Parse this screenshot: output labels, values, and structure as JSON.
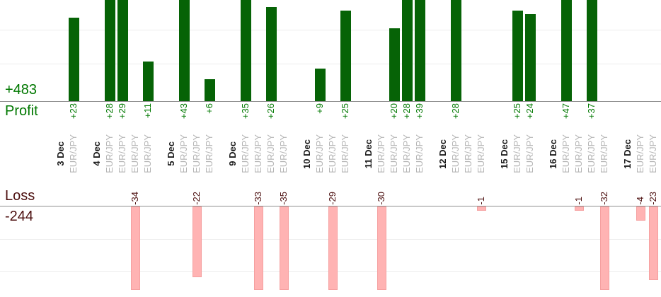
{
  "labels": {
    "profit_total": "+483",
    "profit_caption": "Profit",
    "loss_caption": "Loss",
    "loss_total": "-244"
  },
  "chart_data": {
    "type": "bar",
    "orientation": "vertical-diverging",
    "grid": true,
    "legend": false,
    "profit_axis_caption": "Profit",
    "loss_axis_caption": "Loss",
    "profit_total": "+483",
    "loss_total": "-244",
    "value_unit": "pips",
    "groups": [
      {
        "date": "3 Dec",
        "trades": [
          {
            "symbol": "EUR/JPY",
            "value": 23,
            "label": "+23"
          }
        ]
      },
      {
        "date": "4 Dec",
        "trades": [
          {
            "symbol": "EUR/JPY",
            "value": 28,
            "label": "+28"
          },
          {
            "symbol": "EUR/JPY",
            "value": 29,
            "label": "+29"
          },
          {
            "symbol": "EUR/JPY",
            "value": -34,
            "label": "-34"
          },
          {
            "symbol": "EUR/JPY",
            "value": 11,
            "label": "+11"
          }
        ]
      },
      {
        "date": "5 Dec",
        "trades": [
          {
            "symbol": "EUR/JPY",
            "value": 43,
            "label": "+43"
          },
          {
            "symbol": "EUR/JPY",
            "value": -22,
            "label": "-22"
          },
          {
            "symbol": "EUR/JPY",
            "value": 6,
            "label": "+6"
          }
        ]
      },
      {
        "date": "9 Dec",
        "trades": [
          {
            "symbol": "EUR/JPY",
            "value": 35,
            "label": "+35"
          },
          {
            "symbol": "EUR/JPY",
            "value": -33,
            "label": "-33"
          },
          {
            "symbol": "EUR/JPY",
            "value": 26,
            "label": "+26"
          },
          {
            "symbol": "EUR/JPY",
            "value": -35,
            "label": "-35"
          }
        ]
      },
      {
        "date": "10 Dec",
        "trades": [
          {
            "symbol": "EUR/JPY",
            "value": 9,
            "label": "+9"
          },
          {
            "symbol": "EUR/JPY",
            "value": -29,
            "label": "-29"
          },
          {
            "symbol": "EUR/JPY",
            "value": 25,
            "label": "+25"
          }
        ]
      },
      {
        "date": "11 Dec",
        "trades": [
          {
            "symbol": "EUR/JPY",
            "value": -30,
            "label": "-30"
          },
          {
            "symbol": "EUR/JPY",
            "value": 20,
            "label": "+20"
          },
          {
            "symbol": "EUR/JPY",
            "value": 28,
            "label": "+28"
          },
          {
            "symbol": "EUR/JPY",
            "value": 39,
            "label": "+39"
          }
        ]
      },
      {
        "date": "12 Dec",
        "trades": [
          {
            "symbol": "EUR/JPY",
            "value": 28,
            "label": "+28"
          },
          {
            "symbol": "EUR/JPY",
            "value": null,
            "label": ""
          },
          {
            "symbol": "EUR/JPY",
            "value": -1,
            "label": "-1"
          }
        ]
      },
      {
        "date": "15 Dec",
        "trades": [
          {
            "symbol": "EUR/JPY",
            "value": 25,
            "label": "+25"
          },
          {
            "symbol": "EUR/JPY",
            "value": 24,
            "label": "+24"
          }
        ]
      },
      {
        "date": "16 Dec",
        "trades": [
          {
            "symbol": "EUR/JPY",
            "value": 47,
            "label": "+47"
          },
          {
            "symbol": "EUR/JPY",
            "value": -1,
            "label": "-1"
          },
          {
            "symbol": "EUR/JPY",
            "value": 37,
            "label": "+37"
          },
          {
            "symbol": "EUR/JPY",
            "value": -32,
            "label": "-32"
          }
        ]
      },
      {
        "date": "17 Dec",
        "trades": [
          {
            "symbol": "EUR/JPY",
            "value": -4,
            "label": "-4"
          },
          {
            "symbol": "EUR/JPY",
            "value": -23,
            "label": "-23"
          }
        ]
      }
    ],
    "colors": {
      "profit_bar": "#066306",
      "profit_text": "#007800",
      "loss_fill": "#ffb3b3",
      "loss_border": "#f5a0a0",
      "loss_text": "#4c0f0f",
      "symbol_text": "#b4b4b4",
      "date_text": "#1a1a1a"
    }
  }
}
